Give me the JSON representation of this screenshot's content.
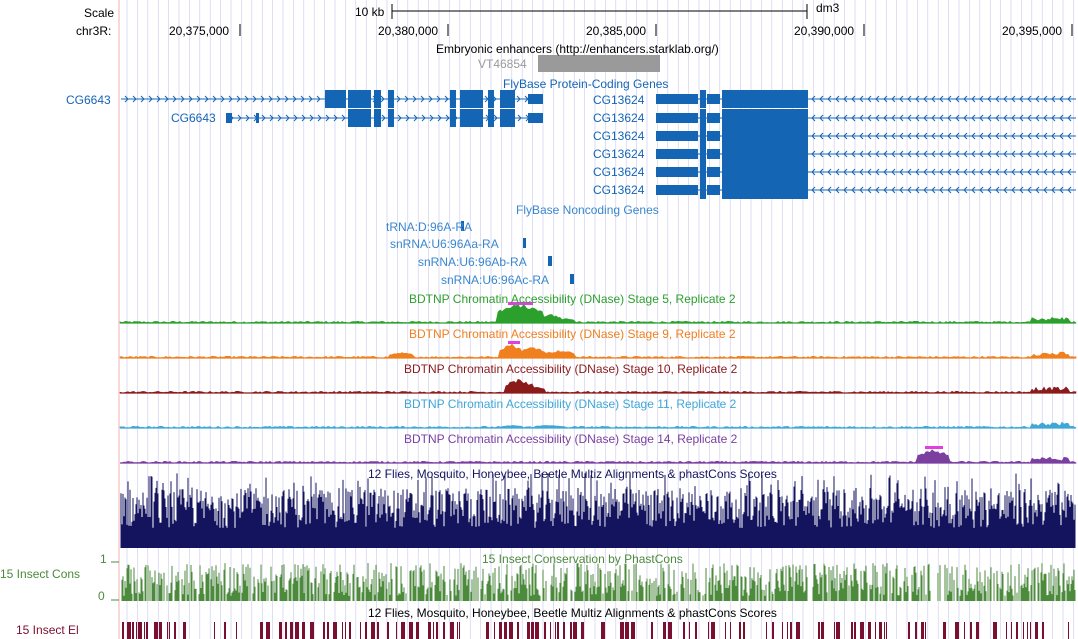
{
  "header": {
    "scale_label": "Scale",
    "chrom_label": "chr3R:",
    "scale_bar_label": "10 kb",
    "assembly": "dm3",
    "positions": [
      "20,375,000",
      "20,380,000",
      "20,385,000",
      "20,390,000",
      "20,395,000"
    ]
  },
  "tracks": {
    "enhancers": {
      "title": "Embryonic enhancers (http://enhancers.starklab.org/)",
      "item": "VT46854"
    },
    "flybase_coding": {
      "title": "FlyBase Protein-Coding Genes",
      "left_genes": [
        "CG6643",
        "CG6643"
      ],
      "right_genes": [
        "CG13624",
        "CG13624",
        "CG13624",
        "CG13624",
        "CG13624",
        "CG13624"
      ]
    },
    "flybase_noncoding": {
      "title": "FlyBase Noncoding Genes",
      "genes": [
        "tRNA:D:96A-RA",
        "snRNA:U6:96Aa-RA",
        "snRNA:U6:96Ab-RA",
        "snRNA:U6:96Ac-RA"
      ]
    },
    "dnase": [
      {
        "title": "BDTNP Chromatin Accessibility (DNase) Stage 5, Replicate 2",
        "color": "#2ca02c"
      },
      {
        "title": "BDTNP Chromatin Accessibility (DNase) Stage 9, Replicate 2",
        "color": "#f07f1e"
      },
      {
        "title": "BDTNP Chromatin Accessibility (DNase) Stage 10, Replicate 2",
        "color": "#8b1a1a"
      },
      {
        "title": "BDTNP Chromatin Accessibility (DNase) Stage 11, Replicate 2",
        "color": "#3fa7d6"
      },
      {
        "title": "BDTNP Chromatin Accessibility (DNase) Stage 14, Replicate 2",
        "color": "#7b3fa0"
      }
    ],
    "multiz": {
      "title": "12 Flies, Mosquito, Honeybee, Beetle Multiz Alignments & phastCons Scores"
    },
    "cons": {
      "title": "15 Insect Conservation by PhastCons",
      "side_label": "15 Insect Cons",
      "ymax": "1",
      "ymin": "0"
    },
    "elements": {
      "title": "12 Flies, Mosquito, Honeybee, Beetle Multiz Alignments & phastCons Scores",
      "side_label": "15 Insect El"
    }
  },
  "colors": {
    "gene": "#1565b5",
    "multiz": "#14145e",
    "cons": "#4c8a3c",
    "elements": "#7a1030",
    "grid": "#c8c8ee",
    "left_edge": "#f0b0b0"
  }
}
